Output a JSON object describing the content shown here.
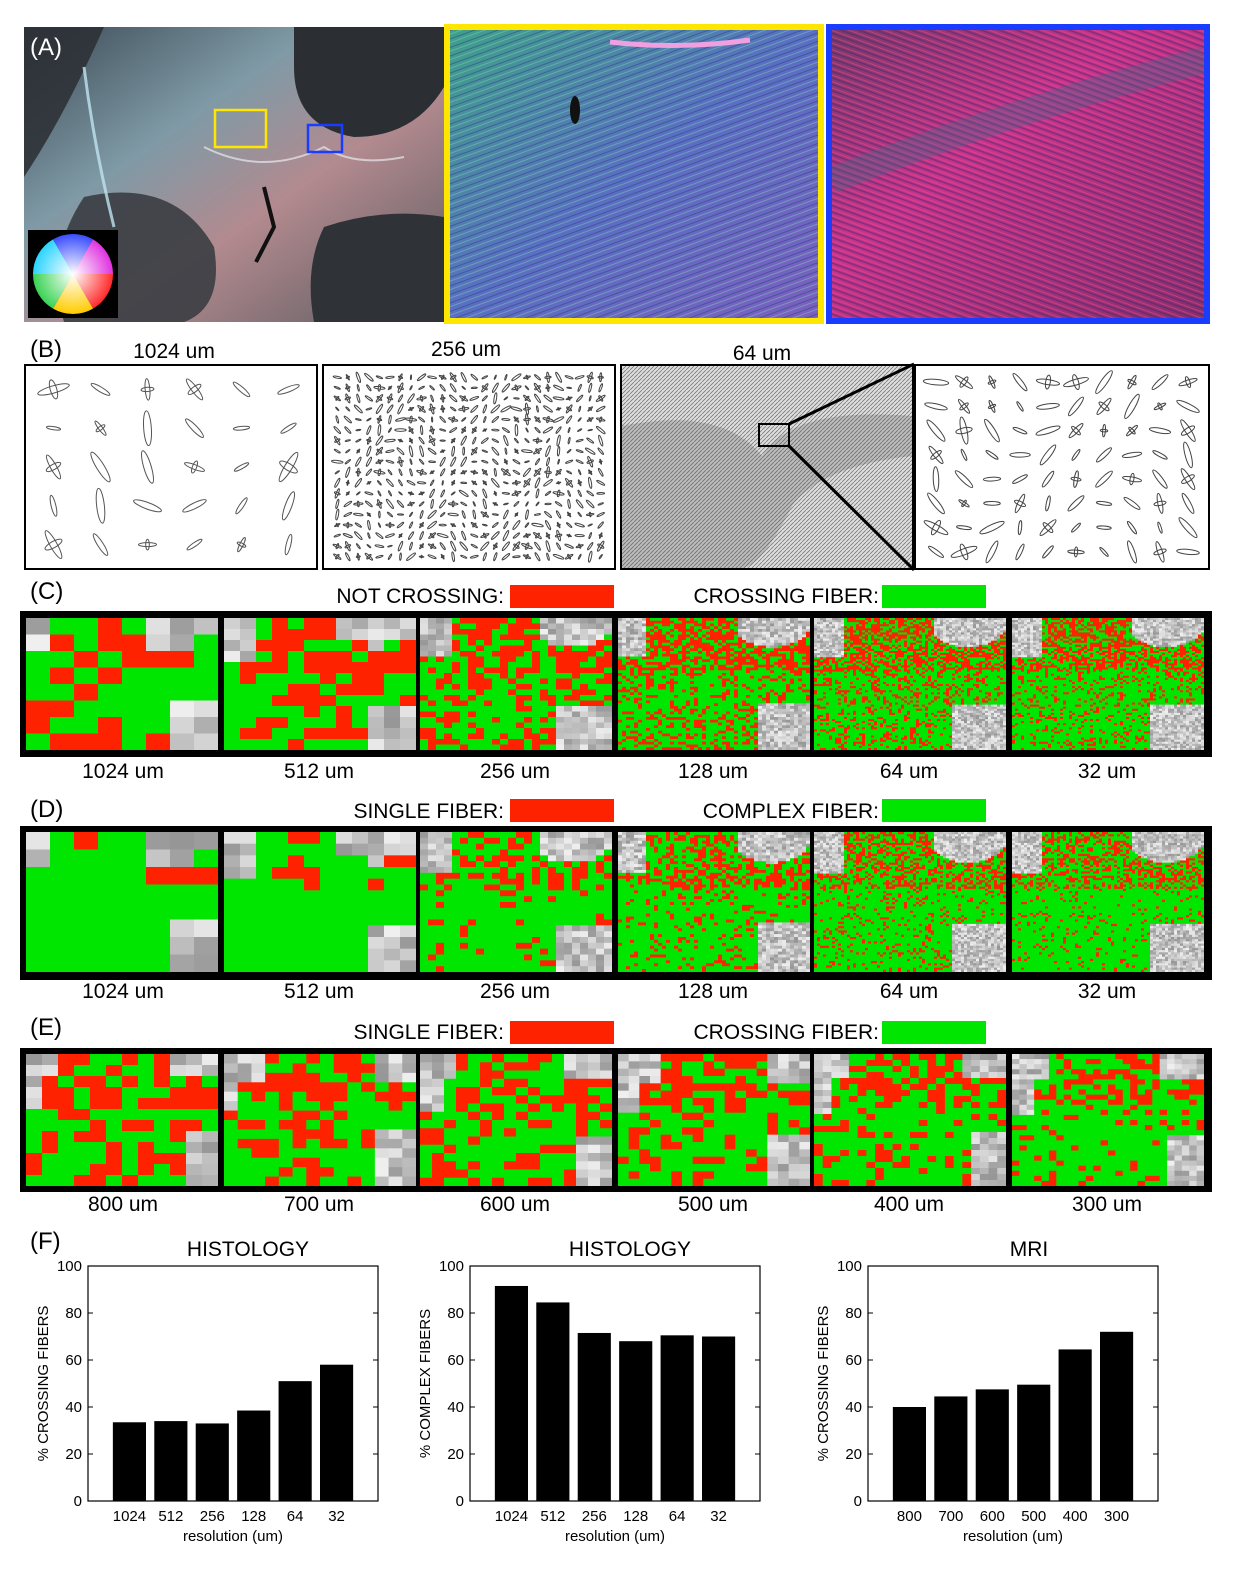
{
  "panel_labels": {
    "a": "(A)",
    "b": "(B)",
    "c": "(C)",
    "d": "(D)",
    "e": "(E)",
    "f": "(F)"
  },
  "colors": {
    "red": "#ff2200",
    "green": "#00e600",
    "yellow": "#ffe600",
    "blue": "#1a3cff"
  },
  "panel_a": {
    "colorwheel_icon": "orientation-colorwheel-icon"
  },
  "panel_b": {
    "titles": [
      "1024 um",
      "256 um",
      "64 um"
    ]
  },
  "panel_c": {
    "legend_red": "NOT CROSSING:",
    "legend_green": "CROSSING FIBER:",
    "resolutions": [
      "1024 um",
      "512 um",
      "256 um",
      "128 um",
      "64 um",
      "32 um"
    ]
  },
  "panel_d": {
    "legend_red": "SINGLE FIBER:",
    "legend_green": "COMPLEX FIBER:",
    "resolutions": [
      "1024 um",
      "512 um",
      "256 um",
      "128 um",
      "64 um",
      "32 um"
    ]
  },
  "panel_e": {
    "legend_red": "SINGLE FIBER:",
    "legend_green": "CROSSING FIBER:",
    "resolutions": [
      "800 um",
      "700 um",
      "600 um",
      "500 um",
      "400 um",
      "300 um"
    ]
  },
  "chart_data": [
    {
      "type": "bar",
      "title": "HISTOLOGY",
      "xlabel": "resolution (um)",
      "ylabel": "% CROSSING FIBERS",
      "categories": [
        "1024",
        "512",
        "256",
        "128",
        "64",
        "32"
      ],
      "values": [
        33.5,
        34,
        33,
        38.5,
        51,
        58
      ],
      "ylim": [
        0,
        100
      ],
      "yticks": [
        "0",
        "20",
        "40",
        "60",
        "80",
        "100"
      ]
    },
    {
      "type": "bar",
      "title": "HISTOLOGY",
      "xlabel": "resolution (um)",
      "ylabel": "% COMPLEX FIBERS",
      "categories": [
        "1024",
        "512",
        "256",
        "128",
        "64",
        "32"
      ],
      "values": [
        91.5,
        84.5,
        71.5,
        68,
        70.5,
        70
      ],
      "ylim": [
        0,
        100
      ],
      "yticks": [
        "0",
        "20",
        "40",
        "60",
        "80",
        "100"
      ]
    },
    {
      "type": "bar",
      "title": "MRI",
      "xlabel": "resolution (um)",
      "ylabel": "% CROSSING FIBERS",
      "categories": [
        "800",
        "700",
        "600",
        "500",
        "400",
        "300"
      ],
      "values": [
        40,
        44.5,
        47.5,
        49.5,
        64.5,
        72
      ],
      "ylim": [
        0,
        100
      ],
      "yticks": [
        "0",
        "20",
        "40",
        "60",
        "80",
        "100"
      ]
    }
  ]
}
